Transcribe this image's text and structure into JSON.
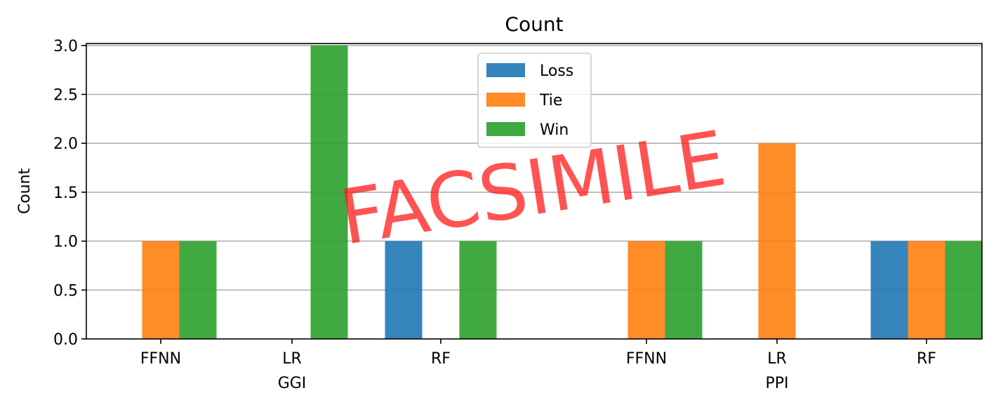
{
  "chart_data": {
    "type": "bar",
    "title": "Count",
    "xlabel": "",
    "ylabel": "Count",
    "ylim": [
      0,
      3.02
    ],
    "yticks": [
      0.0,
      0.5,
      1.0,
      1.5,
      2.0,
      2.5,
      3.0
    ],
    "ytick_labels": [
      "0.0",
      "0.5",
      "1.0",
      "1.5",
      "2.0",
      "2.5",
      "3.0"
    ],
    "grid": "horizontal",
    "legend_position": "top-center",
    "groups": [
      {
        "label": "GGI",
        "categories": [
          "FFNN",
          "LR",
          "RF"
        ]
      },
      {
        "label": "PPI",
        "categories": [
          "FFNN",
          "LR",
          "RF"
        ]
      }
    ],
    "series": [
      {
        "name": "Loss",
        "color": "#1f77b4",
        "values": [
          0,
          0,
          1,
          0,
          0,
          1
        ]
      },
      {
        "name": "Tie",
        "color": "#ff7f0e",
        "values": [
          1,
          0,
          0,
          1,
          2,
          1
        ]
      },
      {
        "name": "Win",
        "color": "#2ca02c",
        "values": [
          1,
          3,
          1,
          1,
          0,
          1
        ]
      }
    ],
    "watermark": "FACSIMILE"
  }
}
